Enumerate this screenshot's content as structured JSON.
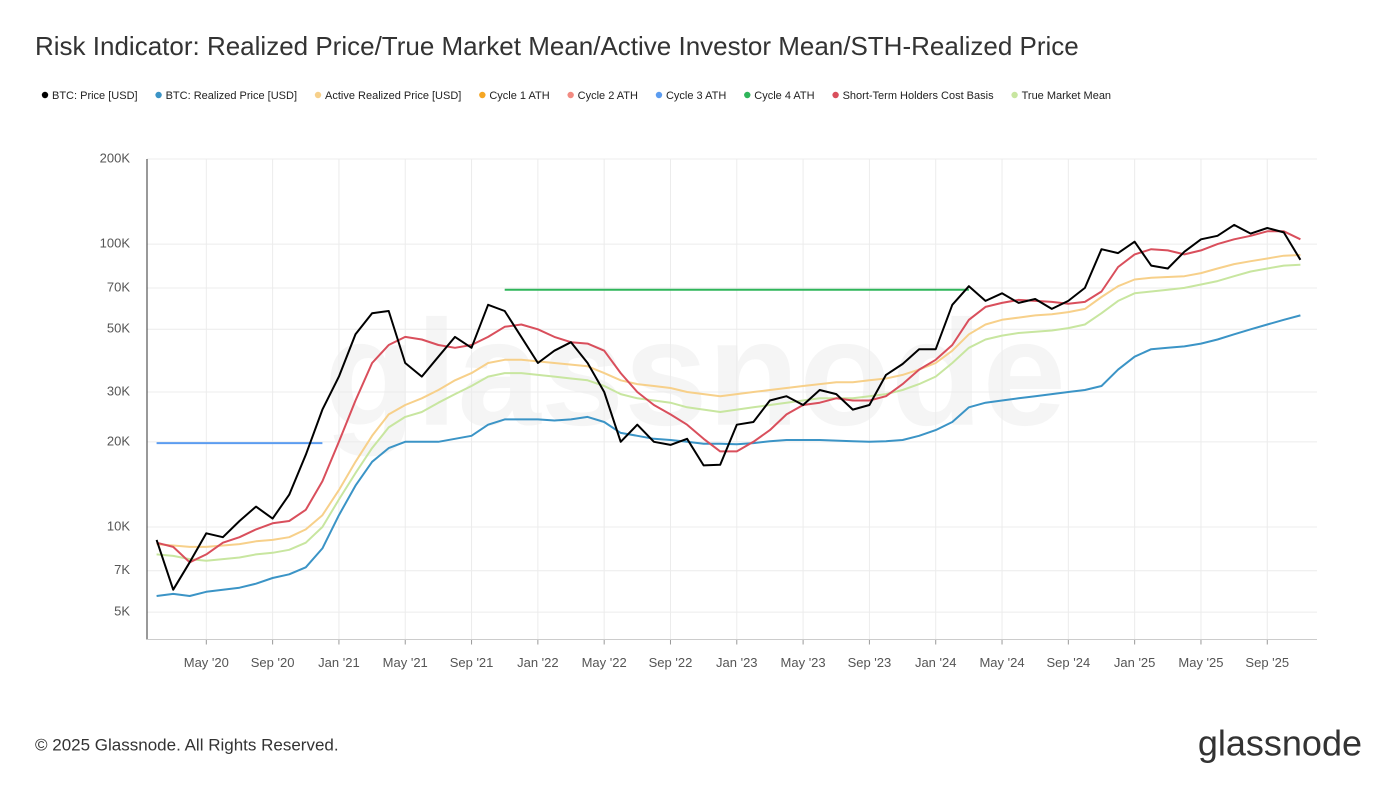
{
  "chart_data": {
    "type": "line",
    "title": "Risk Indicator: Realized Price/True Market Mean/Active Investor Mean/STH-Realized Price",
    "watermark": "glassnode",
    "footer": "© 2025 Glassnode. All Rights Reserved.",
    "logo": "glassnode",
    "log_scale": true,
    "grid": true,
    "xlim": [
      "2020-01",
      "2025-12"
    ],
    "xticks": [
      {
        "value": "2020-05",
        "label": "May '20"
      },
      {
        "value": "2020-09",
        "label": "Sep '20"
      },
      {
        "value": "2021-01",
        "label": "Jan '21"
      },
      {
        "value": "2021-05",
        "label": "May '21"
      },
      {
        "value": "2021-09",
        "label": "Sep '21"
      },
      {
        "value": "2022-01",
        "label": "Jan '22"
      },
      {
        "value": "2022-05",
        "label": "May '22"
      },
      {
        "value": "2022-09",
        "label": "Sep '22"
      },
      {
        "value": "2023-01",
        "label": "Jan '23"
      },
      {
        "value": "2023-05",
        "label": "May '23"
      },
      {
        "value": "2023-09",
        "label": "Sep '23"
      },
      {
        "value": "2024-01",
        "label": "Jan '24"
      },
      {
        "value": "2024-05",
        "label": "May '24"
      },
      {
        "value": "2024-09",
        "label": "Sep '24"
      },
      {
        "value": "2025-01",
        "label": "Jan '25"
      },
      {
        "value": "2025-05",
        "label": "May '25"
      },
      {
        "value": "2025-09",
        "label": "Sep '25"
      }
    ],
    "ylim": [
      4000,
      200000
    ],
    "yticks": [
      {
        "value": 5000,
        "label": "5K"
      },
      {
        "value": 7000,
        "label": "7K"
      },
      {
        "value": 10000,
        "label": "10K"
      },
      {
        "value": 20000,
        "label": "20K"
      },
      {
        "value": 30000,
        "label": "30K"
      },
      {
        "value": 50000,
        "label": "50K"
      },
      {
        "value": 70000,
        "label": "70K"
      },
      {
        "value": 100000,
        "label": "100K"
      },
      {
        "value": 200000,
        "label": "200K"
      }
    ],
    "x": [
      "2020-02",
      "2020-03",
      "2020-04",
      "2020-05",
      "2020-06",
      "2020-07",
      "2020-08",
      "2020-09",
      "2020-10",
      "2020-11",
      "2020-12",
      "2021-01",
      "2021-02",
      "2021-03",
      "2021-04",
      "2021-05",
      "2021-06",
      "2021-07",
      "2021-08",
      "2021-09",
      "2021-10",
      "2021-11",
      "2021-12",
      "2022-01",
      "2022-02",
      "2022-03",
      "2022-04",
      "2022-05",
      "2022-06",
      "2022-07",
      "2022-08",
      "2022-09",
      "2022-10",
      "2022-11",
      "2022-12",
      "2023-01",
      "2023-02",
      "2023-03",
      "2023-04",
      "2023-05",
      "2023-06",
      "2023-07",
      "2023-08",
      "2023-09",
      "2023-10",
      "2023-11",
      "2023-12",
      "2024-01",
      "2024-02",
      "2024-03",
      "2024-04",
      "2024-05",
      "2024-06",
      "2024-07",
      "2024-08",
      "2024-09",
      "2024-10",
      "2024-11",
      "2024-12",
      "2025-01",
      "2025-02",
      "2025-03",
      "2025-04",
      "2025-05",
      "2025-06",
      "2025-07",
      "2025-08",
      "2025-09",
      "2025-10",
      "2025-11"
    ],
    "series": [
      {
        "name": "BTC: Price [USD]",
        "color": "#000000",
        "width": 2,
        "values": [
          9000,
          6000,
          7500,
          9500,
          9200,
          10500,
          11800,
          10700,
          13000,
          18000,
          26000,
          34000,
          48000,
          57000,
          58000,
          38000,
          34000,
          40000,
          47000,
          43000,
          61000,
          58000,
          47000,
          38000,
          42000,
          45000,
          38000,
          30000,
          20000,
          23000,
          20000,
          19500,
          20500,
          16500,
          16600,
          23000,
          23500,
          28000,
          29000,
          27000,
          30500,
          29500,
          26000,
          27000,
          34500,
          37700,
          42500,
          42500,
          61000,
          71000,
          63000,
          67000,
          62000,
          64000,
          59000,
          63000,
          70000,
          96000,
          93000,
          102000,
          84000,
          82000,
          94000,
          104000,
          107000,
          117000,
          109000,
          114000,
          110000,
          88000
        ]
      },
      {
        "name": "BTC: Realized Price [USD]",
        "color": "#3b94c6",
        "width": 2,
        "values": [
          5700,
          5800,
          5700,
          5900,
          6000,
          6100,
          6300,
          6600,
          6800,
          7200,
          8400,
          11000,
          14000,
          17000,
          19000,
          20000,
          20000,
          20000,
          20500,
          21000,
          23000,
          24000,
          24000,
          24000,
          23800,
          24000,
          24500,
          23500,
          21500,
          21000,
          20500,
          20300,
          20000,
          19700,
          19700,
          19600,
          19800,
          20100,
          20300,
          20300,
          20300,
          20200,
          20100,
          20000,
          20100,
          20300,
          21000,
          22000,
          23500,
          26500,
          27500,
          28000,
          28500,
          29000,
          29500,
          30000,
          30500,
          31500,
          36000,
          40000,
          42500,
          43000,
          43500,
          44500,
          46000,
          48000,
          50000,
          52000,
          54000,
          56000
        ]
      },
      {
        "name": "Active Realized Price [USD]",
        "color": "#f7d08a",
        "width": 2,
        "values": [
          8700,
          8600,
          8500,
          8500,
          8600,
          8700,
          8900,
          9000,
          9200,
          9800,
          11000,
          13500,
          17000,
          21000,
          25000,
          27000,
          28500,
          30500,
          33000,
          35000,
          38000,
          39000,
          39000,
          38500,
          38000,
          37500,
          37000,
          35000,
          33000,
          32000,
          31500,
          31000,
          30000,
          29500,
          29000,
          29500,
          30000,
          30500,
          31000,
          31500,
          32000,
          32500,
          32500,
          33000,
          33500,
          34500,
          36000,
          38000,
          42000,
          48000,
          52000,
          54000,
          55000,
          56000,
          56500,
          57500,
          59000,
          65000,
          71000,
          75000,
          76000,
          76500,
          77000,
          79000,
          82000,
          85000,
          87000,
          89000,
          91000,
          91500
        ]
      },
      {
        "name": "Cycle 1 ATH",
        "color": "#f5a623",
        "width": 2,
        "values": [
          null,
          null,
          null,
          null,
          null,
          null,
          null,
          null,
          null,
          null,
          null,
          null,
          null,
          null,
          null,
          null,
          null,
          null,
          null,
          null,
          null,
          null,
          null,
          null,
          null,
          null,
          null,
          null,
          null,
          null,
          null,
          null,
          null,
          null,
          null,
          null,
          null,
          null,
          null,
          null,
          null,
          null,
          null,
          null,
          null,
          null,
          null,
          null,
          null,
          null,
          null,
          null,
          null,
          null,
          null,
          null,
          null,
          null,
          null,
          null,
          null,
          null,
          null,
          null,
          null,
          null,
          null,
          null,
          null,
          null
        ]
      },
      {
        "name": "Cycle 2 ATH",
        "color": "#f28b82",
        "width": 2,
        "values": [
          null,
          null,
          null,
          null,
          null,
          null,
          null,
          null,
          null,
          null,
          null,
          null,
          null,
          null,
          null,
          null,
          null,
          null,
          null,
          null,
          null,
          null,
          null,
          null,
          null,
          null,
          null,
          null,
          null,
          null,
          null,
          null,
          null,
          null,
          null,
          null,
          null,
          null,
          null,
          null,
          null,
          null,
          null,
          null,
          null,
          null,
          null,
          null,
          null,
          null,
          null,
          null,
          null,
          null,
          null,
          null,
          null,
          null,
          null,
          null,
          null,
          null,
          null,
          null,
          null,
          null,
          null,
          null,
          null,
          null
        ]
      },
      {
        "name": "Cycle 3 ATH",
        "color": "#5b9cf0",
        "width": 2,
        "values": [
          19800,
          19800,
          19800,
          19800,
          19800,
          19800,
          19800,
          19800,
          19800,
          19800,
          19800,
          null,
          null,
          null,
          null,
          null,
          null,
          null,
          null,
          null,
          null,
          null,
          null,
          null,
          null,
          null,
          null,
          null,
          null,
          null,
          null,
          null,
          null,
          null,
          null,
          null,
          null,
          null,
          null,
          null,
          null,
          null,
          null,
          null,
          null,
          null,
          null,
          null,
          null,
          null,
          null,
          null,
          null,
          null,
          null,
          null,
          null,
          null,
          null,
          null,
          null,
          null,
          null,
          null,
          null,
          null,
          null,
          null,
          null,
          null
        ]
      },
      {
        "name": "Cycle 4 ATH",
        "color": "#2fb55a",
        "width": 2,
        "values": [
          null,
          null,
          null,
          null,
          null,
          null,
          null,
          null,
          null,
          null,
          null,
          null,
          null,
          null,
          null,
          null,
          null,
          null,
          null,
          null,
          null,
          69000,
          69000,
          69000,
          69000,
          69000,
          69000,
          69000,
          69000,
          69000,
          69000,
          69000,
          69000,
          69000,
          69000,
          69000,
          69000,
          69000,
          69000,
          69000,
          69000,
          69000,
          69000,
          69000,
          69000,
          69000,
          69000,
          69000,
          69000,
          69000,
          null,
          null,
          null,
          null,
          null,
          null,
          null,
          null,
          null,
          null,
          null,
          null,
          null,
          null,
          null,
          null,
          null,
          null,
          null,
          null
        ]
      },
      {
        "name": "Short-Term Holders Cost Basis",
        "color": "#d94f5c",
        "width": 2,
        "values": [
          8800,
          8500,
          7500,
          8000,
          8800,
          9200,
          9800,
          10300,
          10500,
          11500,
          14500,
          20000,
          28000,
          38000,
          44000,
          47000,
          46000,
          44000,
          43000,
          44000,
          47000,
          51000,
          52000,
          50000,
          47000,
          45000,
          44500,
          42000,
          35000,
          30000,
          27000,
          25000,
          23000,
          20500,
          18500,
          18500,
          20000,
          22000,
          25000,
          27000,
          27500,
          28500,
          28000,
          28000,
          29000,
          32000,
          36000,
          39000,
          44000,
          54000,
          60000,
          62000,
          63500,
          63000,
          62500,
          61500,
          62500,
          68000,
          83000,
          92000,
          96000,
          95000,
          92000,
          95000,
          100000,
          104000,
          107000,
          111000,
          111000,
          104000
        ]
      },
      {
        "name": "True Market Mean",
        "color": "#c8e6a0",
        "width": 2,
        "values": [
          8000,
          7900,
          7700,
          7600,
          7700,
          7800,
          8000,
          8100,
          8300,
          8800,
          10000,
          12500,
          15500,
          19000,
          22500,
          24500,
          25500,
          27500,
          29500,
          31500,
          34000,
          35000,
          35000,
          34500,
          34000,
          33500,
          33000,
          31500,
          29500,
          28500,
          28000,
          27500,
          26500,
          26000,
          25500,
          26000,
          26500,
          27000,
          27500,
          28000,
          28500,
          28500,
          28500,
          29000,
          29500,
          30500,
          32000,
          34000,
          38000,
          43000,
          46000,
          47500,
          48500,
          49000,
          49500,
          50500,
          52000,
          57000,
          63000,
          67000,
          68000,
          69000,
          70000,
          72000,
          74000,
          77000,
          80000,
          82000,
          84000,
          84500
        ]
      }
    ]
  }
}
